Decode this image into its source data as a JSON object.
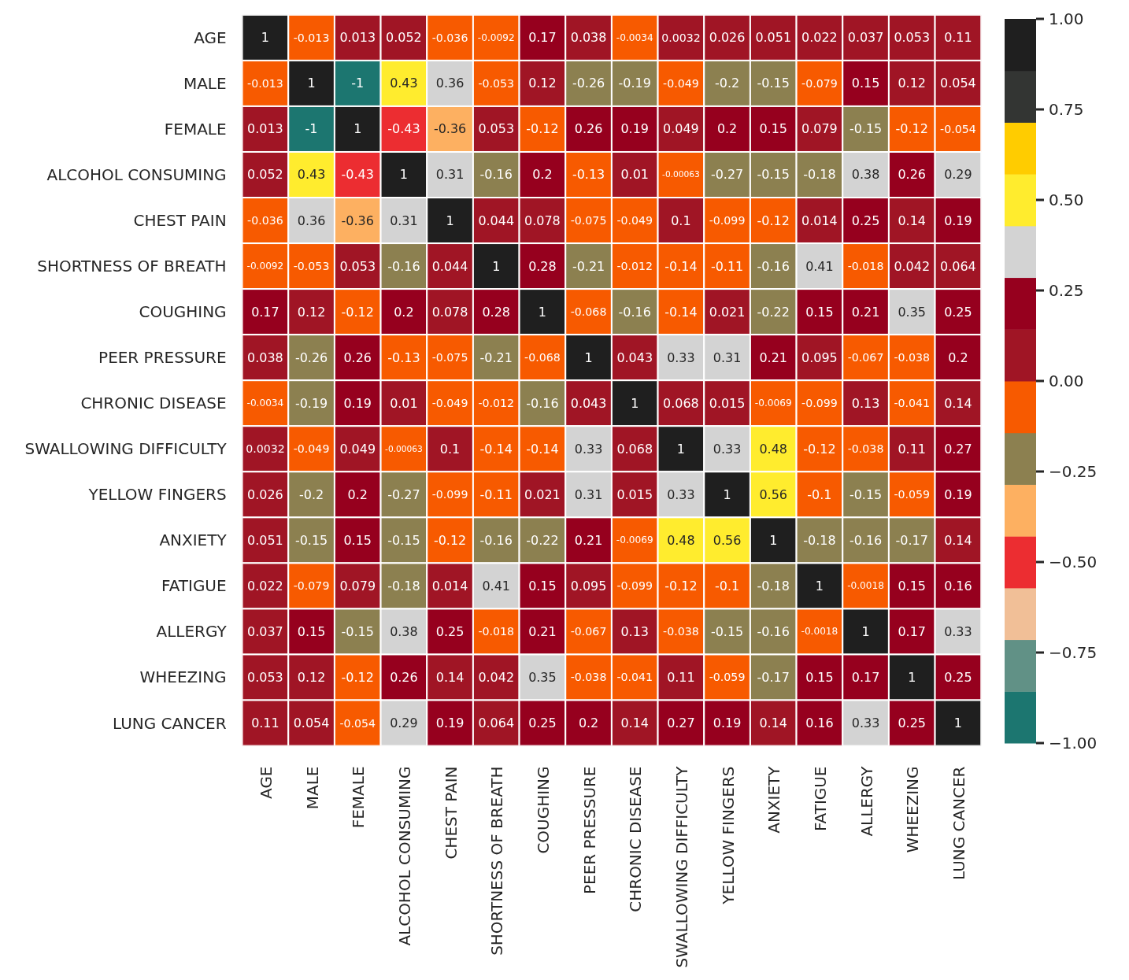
{
  "chart_data": {
    "type": "heatmap",
    "categories": [
      "AGE",
      "MALE",
      "FEMALE",
      "ALCOHOL CONSUMING",
      "CHEST PAIN",
      "SHORTNESS OF BREATH",
      "COUGHING",
      "PEER PRESSURE",
      "CHRONIC DISEASE",
      "SWALLOWING DIFFICULTY",
      "YELLOW FINGERS",
      "ANXIETY",
      "FATIGUE",
      "ALLERGY",
      "WHEEZING",
      "LUNG CANCER"
    ],
    "y_categories": [
      "AGE",
      "MALE",
      "FEMALE",
      "ALCOHOL CONSUMING",
      "CHEST PAIN",
      "SHORTNESS OF BREATH",
      "COUGHING",
      "PEER PRESSURE",
      "CHRONIC DISEASE",
      "SWALLOWING DIFFICULTY",
      "YELLOW FINGERS",
      "ANXIETY",
      "FATIGUE",
      "ALLERGY",
      "WHEEZING",
      "LUNG CANCER"
    ],
    "cells": [
      [
        1,
        -0.013,
        0.013,
        0.052,
        -0.036,
        -0.0092,
        0.17,
        0.038,
        -0.0034,
        0.0032,
        0.026,
        0.051,
        0.022,
        0.037,
        0.053,
        0.11
      ],
      [
        -0.013,
        1,
        -1,
        0.43,
        0.36,
        -0.053,
        0.12,
        -0.26,
        -0.19,
        -0.049,
        -0.2,
        -0.15,
        -0.079,
        0.15,
        0.12,
        0.054
      ],
      [
        0.013,
        -1,
        1,
        -0.43,
        -0.36,
        0.053,
        -0.12,
        0.26,
        0.19,
        0.049,
        0.2,
        0.15,
        0.079,
        -0.15,
        -0.12,
        -0.054
      ],
      [
        0.052,
        0.43,
        -0.43,
        1,
        0.31,
        -0.16,
        0.2,
        -0.13,
        0.01,
        -0.00063,
        -0.27,
        -0.15,
        -0.18,
        0.38,
        0.26,
        0.29
      ],
      [
        -0.036,
        0.36,
        -0.36,
        0.31,
        1,
        0.044,
        0.078,
        -0.075,
        -0.049,
        0.1,
        -0.099,
        -0.12,
        0.014,
        0.25,
        0.14,
        0.19
      ],
      [
        -0.0092,
        -0.053,
        0.053,
        -0.16,
        0.044,
        1,
        0.28,
        -0.21,
        -0.012,
        -0.14,
        -0.11,
        -0.16,
        0.41,
        -0.018,
        0.042,
        0.064
      ],
      [
        0.17,
        0.12,
        -0.12,
        0.2,
        0.078,
        0.28,
        1,
        -0.068,
        -0.16,
        -0.14,
        0.021,
        -0.22,
        0.15,
        0.21,
        0.35,
        0.25
      ],
      [
        0.038,
        -0.26,
        0.26,
        -0.13,
        -0.075,
        -0.21,
        -0.068,
        1,
        0.043,
        0.33,
        0.31,
        0.21,
        0.095,
        -0.067,
        -0.038,
        0.2
      ],
      [
        -0.0034,
        -0.19,
        0.19,
        0.01,
        -0.049,
        -0.012,
        -0.16,
        0.043,
        1,
        0.068,
        0.015,
        -0.0069,
        -0.099,
        0.13,
        -0.041,
        0.14
      ],
      [
        0.0032,
        -0.049,
        0.049,
        -0.00063,
        0.1,
        -0.14,
        -0.14,
        0.33,
        0.068,
        1,
        0.33,
        0.48,
        -0.12,
        -0.038,
        0.11,
        0.27
      ],
      [
        0.026,
        -0.2,
        0.2,
        -0.27,
        -0.099,
        -0.11,
        0.021,
        0.31,
        0.015,
        0.33,
        1,
        0.56,
        -0.1,
        -0.15,
        -0.059,
        0.19
      ],
      [
        0.051,
        -0.15,
        0.15,
        -0.15,
        -0.12,
        -0.16,
        -0.22,
        0.21,
        -0.0069,
        0.48,
        0.56,
        1,
        -0.18,
        -0.16,
        -0.17,
        0.14
      ],
      [
        0.022,
        -0.079,
        0.079,
        -0.18,
        0.014,
        0.41,
        0.15,
        0.095,
        -0.099,
        -0.12,
        -0.1,
        -0.18,
        1,
        -0.0018,
        0.15,
        0.16
      ],
      [
        0.037,
        0.15,
        -0.15,
        0.38,
        0.25,
        -0.018,
        0.21,
        -0.067,
        0.13,
        -0.038,
        -0.15,
        -0.16,
        -0.0018,
        1,
        0.17,
        0.33
      ],
      [
        0.053,
        0.12,
        -0.12,
        0.26,
        0.14,
        0.042,
        0.35,
        -0.038,
        -0.041,
        0.11,
        -0.059,
        -0.17,
        0.15,
        0.17,
        1,
        0.25
      ],
      [
        0.11,
        0.054,
        -0.054,
        0.29,
        0.19,
        0.064,
        0.25,
        0.2,
        0.14,
        0.27,
        0.19,
        0.14,
        0.16,
        0.33,
        0.25,
        1
      ]
    ],
    "colors": [
      "#1c7670",
      "#619186",
      "#f1bf97",
      "#ec2d31",
      "#fdb061",
      "#8c8050",
      "#f75a00",
      "#a01525",
      "#96001e",
      "#d3d3d3",
      "#ffec2e",
      "#ffcc00",
      "#333533",
      "#1f1f1f"
    ],
    "clim": [
      -1,
      1
    ],
    "cticks": [
      {
        "value": 1,
        "label": "1.00"
      },
      {
        "value": 0.75,
        "label": "0.75"
      },
      {
        "value": 0.5,
        "label": "0.50"
      },
      {
        "value": 0.25,
        "label": "0.25"
      },
      {
        "value": 0,
        "label": "0.00"
      },
      {
        "value": -0.25,
        "label": "−0.25"
      },
      {
        "value": -0.5,
        "label": "−0.50"
      },
      {
        "value": -0.75,
        "label": "−0.75"
      },
      {
        "value": -1,
        "label": "−1.00"
      }
    ],
    "data_labels": true
  }
}
